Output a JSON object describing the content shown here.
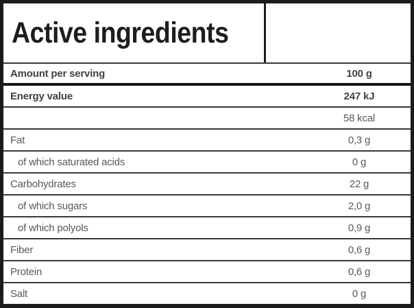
{
  "panel": {
    "title": "Active ingredients",
    "header": {
      "label": "Amount per serving",
      "value": "100 g"
    },
    "rows": [
      {
        "label": "Energy value",
        "value": "247 kJ",
        "bold": true,
        "indent": false
      },
      {
        "label": "",
        "value": "58 kcal",
        "bold": false,
        "indent": false
      },
      {
        "label": "Fat",
        "value": "0,3 g",
        "bold": false,
        "indent": false
      },
      {
        "label": "of which saturated acids",
        "value": "0 g",
        "bold": false,
        "indent": true
      },
      {
        "label": "Carbohydrates",
        "value": "22 g",
        "bold": false,
        "indent": false
      },
      {
        "label": "of which sugars",
        "value": "2,0 g",
        "bold": false,
        "indent": true
      },
      {
        "label": "of which polyols",
        "value": "0,9 g",
        "bold": false,
        "indent": true
      },
      {
        "label": "Fiber",
        "value": "0,6 g",
        "bold": false,
        "indent": false
      },
      {
        "label": "Protein",
        "value": "0,6 g",
        "bold": false,
        "indent": false
      },
      {
        "label": "Salt",
        "value": "0 g",
        "bold": false,
        "indent": false
      }
    ],
    "colors": {
      "outer_border": "#1b1b1d",
      "row_divider": "#39393b",
      "thick_divider": "#141416",
      "label_text": "#58585b",
      "bold_text": "#414144",
      "title_text": "#1d1d1f",
      "background": "#ffffff"
    }
  }
}
